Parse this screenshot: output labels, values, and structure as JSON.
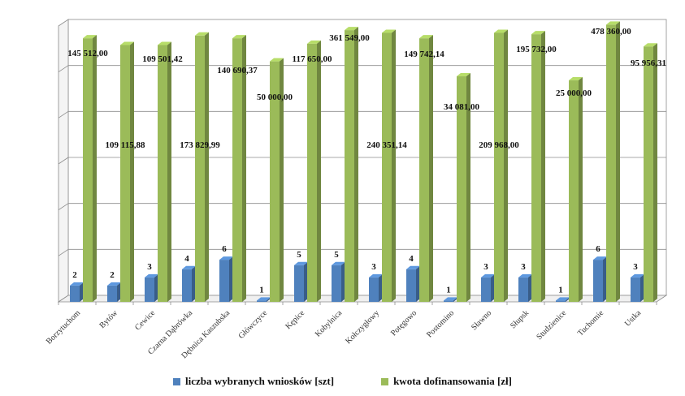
{
  "chart_data": {
    "type": "bar",
    "title": "",
    "xlabel": "",
    "ylabel": "",
    "grid": true,
    "legend_position": "bottom",
    "categories": [
      "Borzytuchom",
      "Bytów",
      "Cewice",
      "Czarna Dąbrówka",
      "Dębnica Kaszubska",
      "Główczyce",
      "Kępice",
      "Kobylnica",
      "Kołczygłowy",
      "Potęgowo",
      "Postomino",
      "Sławno",
      "Słupsk",
      "Studzienice",
      "Tuchomie",
      "Ustka"
    ],
    "series": [
      {
        "name": "liczba wybranych wniosków [szt]",
        "color": "#4F81BD",
        "values": [
          2,
          2,
          3,
          4,
          6,
          1,
          5,
          5,
          3,
          4,
          1,
          3,
          3,
          1,
          6,
          3
        ],
        "labels": [
          "2",
          "2",
          "3",
          "4",
          "6",
          "1",
          "5",
          "5",
          "3",
          "4",
          "1",
          "3",
          "3",
          "1",
          "6",
          "3"
        ],
        "bar_heights_relative": [
          0.06,
          0.06,
          0.09,
          0.12,
          0.155,
          0.005,
          0.135,
          0.135,
          0.09,
          0.12,
          0.005,
          0.09,
          0.09,
          0.005,
          0.155,
          0.09
        ]
      },
      {
        "name": "kwota dofinansowania [zł]",
        "color": "#9BBB59",
        "values": [
          145512.0,
          109115.88,
          109501.42,
          173829.99,
          140690.37,
          50000.0,
          117650.0,
          361549.0,
          240351.14,
          149742.14,
          34081.0,
          209968.0,
          195732.0,
          25000.0,
          478360.0,
          95956.31
        ],
        "labels": [
          "145 512,00",
          "109 115,88",
          "109 501,42",
          "173 829,99",
          "140 690,37",
          "50 000,00",
          "117 650,00",
          "361 549,00",
          "240 351,14",
          "149 742,14",
          "34 081,00",
          "209 968,00",
          "195 732,00",
          "25 000,00",
          "478 360,00",
          "95 956,31"
        ],
        "bar_heights_relative": [
          0.97,
          0.945,
          0.945,
          0.98,
          0.97,
          0.885,
          0.95,
          1.0,
          0.99,
          0.97,
          0.83,
          0.99,
          0.985,
          0.815,
          1.02,
          0.94
        ]
      }
    ]
  }
}
